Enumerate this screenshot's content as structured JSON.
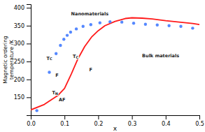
{
  "chart_data": {
    "type": "line",
    "xlabel": "x",
    "ylabel": "Magnetic ordering\ntemperature /K",
    "xlim": [
      0,
      0.5
    ],
    "ylim": [
      100,
      410
    ],
    "xticks": [
      {
        "value": 0,
        "label": "0.0"
      },
      0.1,
      0.2,
      0.3,
      0.4,
      0.5
    ],
    "yticks": [
      150,
      200,
      250,
      300,
      350,
      400
    ],
    "series": [
      {
        "type": "line",
        "color": "#ff1a1a",
        "x": [
          0.0,
          0.04,
          0.08,
          0.1,
          0.12,
          0.14,
          0.16,
          0.18,
          0.2,
          0.22,
          0.25,
          0.28,
          0.3,
          0.33,
          0.36,
          0.4,
          0.44,
          0.48,
          0.5
        ],
        "values": [
          115,
          130,
          155,
          175,
          215,
          258,
          292,
          318,
          336,
          350,
          362,
          370,
          372,
          371,
          369,
          364,
          360,
          356,
          353
        ]
      },
      {
        "type": "scatter",
        "color": "#5588ff",
        "x": [
          0.018,
          0.055,
          0.075,
          0.088,
          0.098,
          0.108,
          0.118,
          0.135,
          0.155,
          0.178,
          0.205,
          0.235,
          0.27,
          0.305,
          0.34,
          0.375,
          0.41,
          0.445,
          0.48
        ],
        "values": [
          113,
          220,
          272,
          295,
          312,
          323,
          332,
          341,
          348,
          353,
          358,
          361,
          360,
          357,
          354,
          352,
          350,
          348,
          343
        ]
      }
    ],
    "annotations": [
      {
        "text": "Nanomaterials",
        "x": 0.175,
        "y": 383
      },
      {
        "text": "Bulk materials",
        "x": 0.385,
        "y": 265
      },
      {
        "text": "F",
        "x": 0.078,
        "y": 210
      },
      {
        "text": "F",
        "x": 0.178,
        "y": 227
      },
      {
        "text": "AF",
        "x": 0.093,
        "y": 143
      },
      {
        "text": "TC",
        "x": 0.055,
        "y": 258
      },
      {
        "text": "TC",
        "x": 0.133,
        "y": 263
      },
      {
        "text": "TN",
        "x": 0.072,
        "y": 162
      }
    ]
  }
}
